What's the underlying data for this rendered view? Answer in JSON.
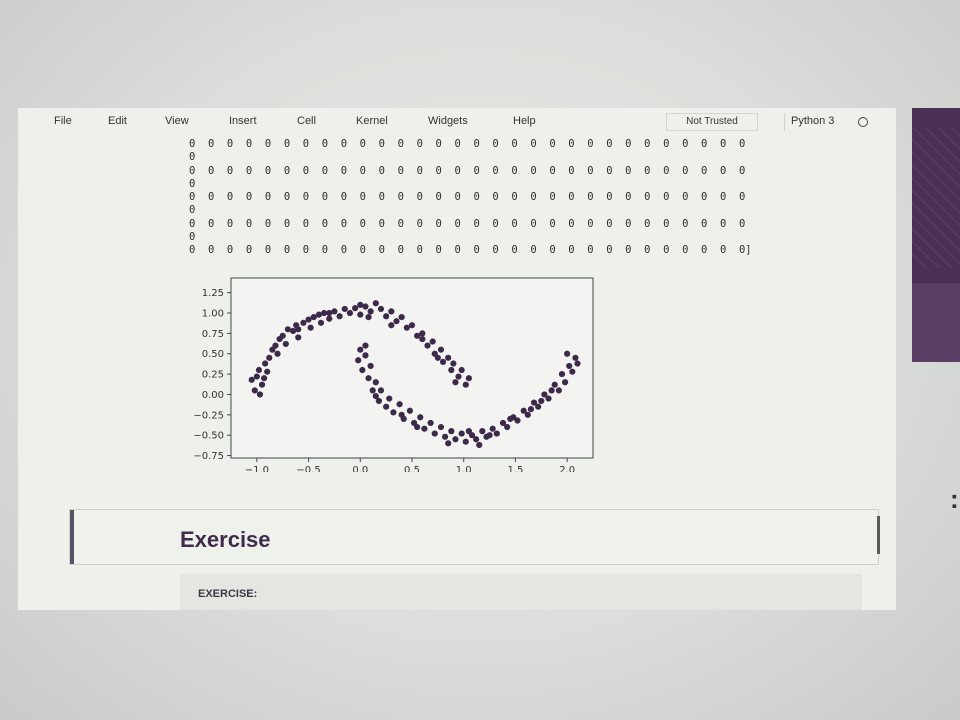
{
  "menubar": {
    "items": [
      "File",
      "Edit",
      "View",
      "Insert",
      "Cell",
      "Kernel",
      "Widgets",
      "Help"
    ],
    "trust_status": "Not Trusted",
    "kernel": "Python 3"
  },
  "output": {
    "zero_rows": [
      "0 0 0 0 0 0 0 0 0 0 0 0 0 0 0 0 0 0 0 0 0 0 0 0 0 0 0 0 0 0 0 0 0 0 0 0 0 0 0 0 0 0 0 0 0 0 0 0 0 0 0 0 0 0 0 0 0 0 0",
      "0",
      "0 0 0 0 0 0 0 0 0 0 0 0 0 0 0 0 0 0 0 0 0 0 0 0 0 0 0 0 0 0 0 0 0 0 0 0 0 0 0 0 0 0 0 0 0 0 0 0 0 0 0 0 0 0 0 0 0 0 0",
      "0",
      "0 0 0 0 0 0 0 0 0 0 0 0 0 0 0 0 0 0 0 0 0 0 0 0 0 0 0 0 0 0 0 0 0 0 0 0 0 0 0 0 0 0 0 0 0 0 0 0 0 0 0 0 0 0 0 0 0 0 0",
      "0",
      "0 0 0 0 0 0 0 0 0 0 0 0 0 0 0 0 0 0 0 0 0 0 0 0 0 0 0 0 0 0 0 0 0 0 0 0 0 0 0 0 0 0 0 0 0 0 0 0 0 0 0 0 0 0 0 0 0 0 0",
      "0",
      "0 0 0 0 0 0 0 0 0 0 0 0 0 0 0 0 0 0 0 0 0 0 0 0 0 0 0 0 0 0 0 0 0 0 0 0 0 0 0 0 0 0 0 0 0 0 0 0 0 0 0 0 0 0 0 0 0 0 0]"
    ]
  },
  "chart_data": {
    "type": "scatter",
    "title": "",
    "xlabel": "",
    "ylabel": "",
    "xlim": [
      -1.25,
      2.25
    ],
    "ylim": [
      -0.78,
      1.43
    ],
    "xticks": [
      -1.0,
      -0.5,
      0.0,
      0.5,
      1.0,
      1.5,
      2.0
    ],
    "xtick_labels": [
      "−1.0",
      "−0.5",
      "0.0",
      "0.5",
      "1.0",
      "1.5",
      "2.0"
    ],
    "yticks": [
      -0.75,
      -0.5,
      -0.25,
      0.0,
      0.25,
      0.5,
      0.75,
      1.0,
      1.25
    ],
    "ytick_labels": [
      "−0.75",
      "−0.50",
      "−0.25",
      "0.00",
      "0.25",
      "0.50",
      "0.75",
      "1.00",
      "1.25"
    ],
    "grid": false,
    "point_color": "#3d2a4a",
    "series": [
      {
        "points": [
          [
            -1.02,
            0.05
          ],
          [
            -1.05,
            0.18
          ],
          [
            -0.98,
            0.3
          ],
          [
            -1.0,
            0.22
          ],
          [
            -0.95,
            0.12
          ],
          [
            -0.92,
            0.38
          ],
          [
            -0.88,
            0.45
          ],
          [
            -0.9,
            0.28
          ],
          [
            -0.85,
            0.55
          ],
          [
            -0.82,
            0.6
          ],
          [
            -0.8,
            0.5
          ],
          [
            -0.78,
            0.68
          ],
          [
            -0.75,
            0.72
          ],
          [
            -0.72,
            0.62
          ],
          [
            -0.7,
            0.8
          ],
          [
            -0.65,
            0.78
          ],
          [
            -0.62,
            0.85
          ],
          [
            -0.6,
            0.7
          ],
          [
            -0.55,
            0.88
          ],
          [
            -0.5,
            0.92
          ],
          [
            -0.48,
            0.82
          ],
          [
            -0.45,
            0.95
          ],
          [
            -0.4,
            0.98
          ],
          [
            -0.38,
            0.88
          ],
          [
            -0.35,
            1.0
          ],
          [
            -0.3,
            0.93
          ],
          [
            -0.25,
            1.02
          ],
          [
            -0.2,
            0.96
          ],
          [
            -0.15,
            1.05
          ],
          [
            -0.1,
            1.0
          ],
          [
            -0.05,
            1.06
          ],
          [
            0.0,
            0.98
          ],
          [
            0.05,
            1.08
          ],
          [
            0.1,
            1.02
          ],
          [
            0.15,
            1.12
          ],
          [
            0.2,
            1.05
          ],
          [
            0.25,
            0.96
          ],
          [
            0.3,
            1.02
          ],
          [
            0.35,
            0.9
          ],
          [
            0.4,
            0.95
          ],
          [
            0.45,
            0.82
          ],
          [
            0.5,
            0.85
          ],
          [
            0.55,
            0.72
          ],
          [
            0.6,
            0.75
          ],
          [
            0.65,
            0.6
          ],
          [
            0.7,
            0.65
          ],
          [
            0.72,
            0.5
          ],
          [
            0.78,
            0.55
          ],
          [
            0.8,
            0.4
          ],
          [
            0.85,
            0.45
          ],
          [
            0.88,
            0.3
          ],
          [
            0.9,
            0.38
          ],
          [
            0.95,
            0.22
          ],
          [
            0.98,
            0.3
          ],
          [
            1.02,
            0.12
          ],
          [
            1.05,
            0.2
          ],
          [
            -0.97,
            0.0
          ],
          [
            -0.93,
            0.2
          ],
          [
            -0.6,
            0.8
          ],
          [
            -0.3,
            1.0
          ],
          [
            0.0,
            1.1
          ],
          [
            0.08,
            0.95
          ],
          [
            0.3,
            0.85
          ],
          [
            0.6,
            0.68
          ],
          [
            0.75,
            0.45
          ],
          [
            0.92,
            0.15
          ]
        ]
      },
      {
        "points": [
          [
            0.0,
            0.55
          ],
          [
            -0.02,
            0.42
          ],
          [
            0.02,
            0.3
          ],
          [
            0.05,
            0.48
          ],
          [
            0.08,
            0.2
          ],
          [
            0.1,
            0.35
          ],
          [
            0.12,
            0.05
          ],
          [
            0.15,
            0.15
          ],
          [
            0.18,
            -0.08
          ],
          [
            0.2,
            0.05
          ],
          [
            0.25,
            -0.15
          ],
          [
            0.28,
            -0.05
          ],
          [
            0.32,
            -0.22
          ],
          [
            0.38,
            -0.12
          ],
          [
            0.42,
            -0.3
          ],
          [
            0.48,
            -0.2
          ],
          [
            0.52,
            -0.35
          ],
          [
            0.58,
            -0.28
          ],
          [
            0.62,
            -0.42
          ],
          [
            0.68,
            -0.35
          ],
          [
            0.72,
            -0.48
          ],
          [
            0.78,
            -0.4
          ],
          [
            0.82,
            -0.52
          ],
          [
            0.88,
            -0.45
          ],
          [
            0.92,
            -0.55
          ],
          [
            0.98,
            -0.48
          ],
          [
            1.02,
            -0.58
          ],
          [
            1.08,
            -0.5
          ],
          [
            1.12,
            -0.55
          ],
          [
            1.18,
            -0.45
          ],
          [
            1.22,
            -0.52
          ],
          [
            1.28,
            -0.42
          ],
          [
            1.32,
            -0.48
          ],
          [
            1.38,
            -0.35
          ],
          [
            1.42,
            -0.4
          ],
          [
            1.48,
            -0.28
          ],
          [
            1.52,
            -0.32
          ],
          [
            1.58,
            -0.2
          ],
          [
            1.62,
            -0.25
          ],
          [
            1.68,
            -0.1
          ],
          [
            1.72,
            -0.15
          ],
          [
            1.78,
            0.0
          ],
          [
            1.82,
            -0.05
          ],
          [
            1.88,
            0.12
          ],
          [
            1.92,
            0.05
          ],
          [
            1.95,
            0.25
          ],
          [
            1.98,
            0.15
          ],
          [
            2.02,
            0.35
          ],
          [
            2.05,
            0.28
          ],
          [
            2.08,
            0.45
          ],
          [
            2.0,
            0.5
          ],
          [
            2.1,
            0.38
          ],
          [
            0.05,
            0.6
          ],
          [
            0.4,
            -0.25
          ],
          [
            0.85,
            -0.6
          ],
          [
            1.05,
            -0.45
          ],
          [
            1.25,
            -0.5
          ],
          [
            1.45,
            -0.3
          ],
          [
            1.65,
            -0.18
          ],
          [
            1.85,
            0.05
          ],
          [
            0.15,
            -0.02
          ],
          [
            0.55,
            -0.4
          ],
          [
            1.15,
            -0.62
          ],
          [
            1.75,
            -0.08
          ]
        ]
      }
    ]
  },
  "exercise": {
    "heading": "Exercise",
    "label": "EXERCISE:"
  }
}
